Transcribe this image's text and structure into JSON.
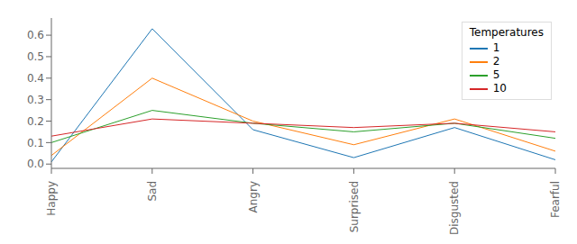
{
  "chart_data": {
    "type": "line",
    "categories": [
      "Happy",
      "Sad",
      "Angry",
      "Surprised",
      "Disgusted",
      "Fearful"
    ],
    "series": [
      {
        "name": "1",
        "color": "#1f77b4",
        "values": [
          0.01,
          0.63,
          0.16,
          0.03,
          0.17,
          0.02
        ]
      },
      {
        "name": "2",
        "color": "#ff7f0e",
        "values": [
          0.04,
          0.4,
          0.2,
          0.09,
          0.21,
          0.06
        ]
      },
      {
        "name": "5",
        "color": "#2ca02c",
        "values": [
          0.1,
          0.25,
          0.19,
          0.15,
          0.19,
          0.12
        ]
      },
      {
        "name": "10",
        "color": "#d62728",
        "values": [
          0.13,
          0.21,
          0.19,
          0.17,
          0.19,
          0.15
        ]
      }
    ],
    "legend_title": "Temperatures",
    "legend": "upper right",
    "ylim": [
      -0.02,
      0.68
    ],
    "yticks": [
      {
        "value": 0,
        "label": "0.0"
      },
      0.1,
      0.2,
      0.3,
      0.4,
      0.5,
      0.6
    ],
    "grid": false
  }
}
